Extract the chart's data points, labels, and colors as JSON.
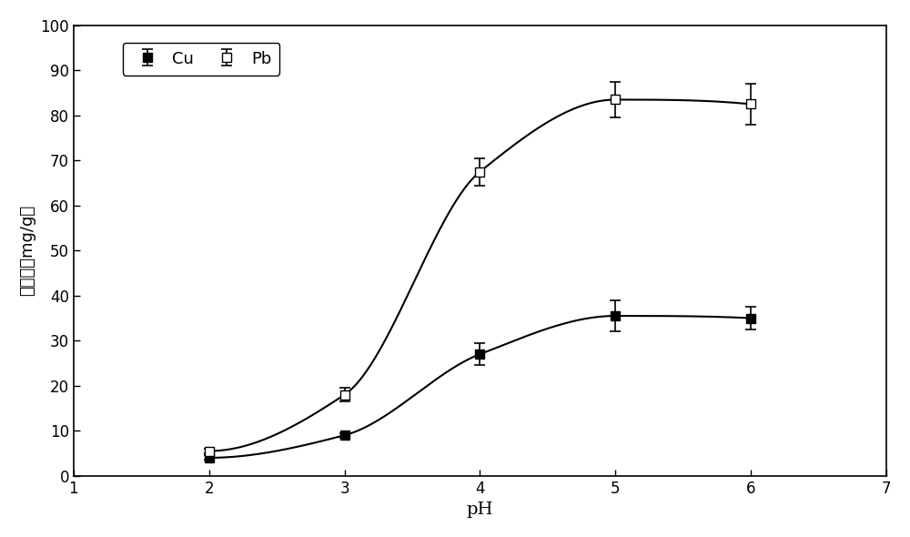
{
  "Cu_x": [
    2,
    3,
    4,
    5,
    6
  ],
  "Cu_y": [
    4.0,
    9.0,
    27.0,
    35.5,
    35.0
  ],
  "Cu_yerr": [
    0.5,
    0.5,
    2.5,
    3.5,
    2.5
  ],
  "Pb_x": [
    2,
    3,
    4,
    5,
    6
  ],
  "Pb_y": [
    5.5,
    18.0,
    67.5,
    83.5,
    82.5
  ],
  "Pb_yerr": [
    0.5,
    1.5,
    3.0,
    4.0,
    4.5
  ],
  "xlabel": "pH",
  "ylabel": "吸附量（mg/g）",
  "xlim": [
    1,
    7
  ],
  "ylim": [
    0,
    100
  ],
  "xticks": [
    1,
    2,
    3,
    4,
    5,
    6,
    7
  ],
  "yticks": [
    0,
    10,
    20,
    30,
    40,
    50,
    60,
    70,
    80,
    90,
    100
  ],
  "legend_Cu": "Cu",
  "legend_Pb": "Pb",
  "line_color": "#000000",
  "background_color": "#ffffff",
  "label_fontsize": 14,
  "tick_fontsize": 12
}
